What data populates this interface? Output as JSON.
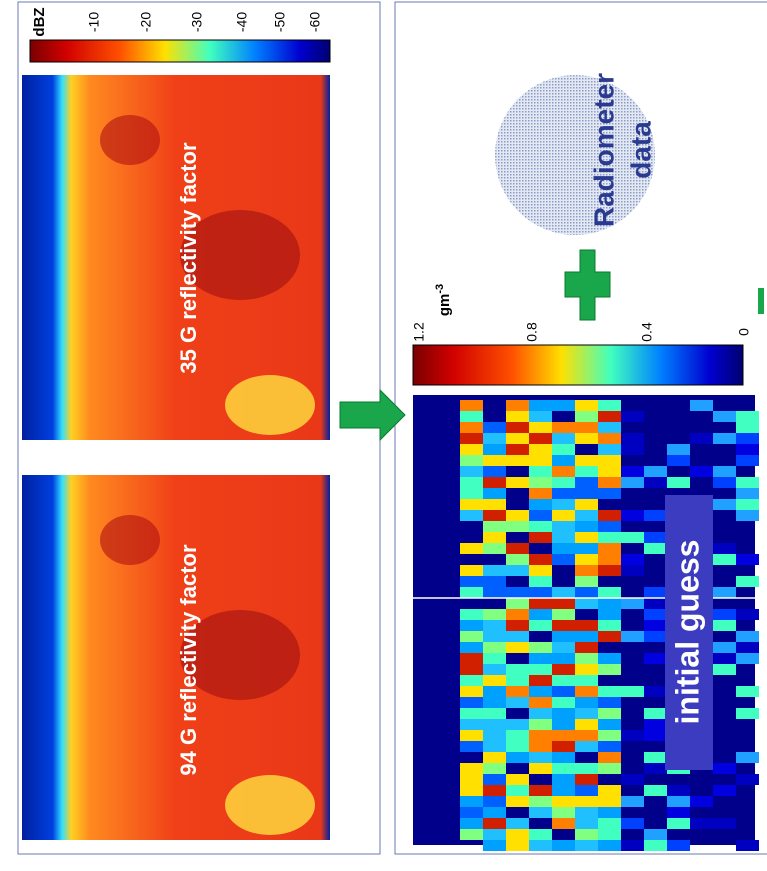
{
  "left_panel": {
    "colorbar_unit": "dBZ",
    "colorbar_ticks": [
      "-10",
      "-20",
      "-30",
      "-40",
      "-50",
      "-60"
    ],
    "maps": [
      "35 G reflectivity factor",
      "94 G reflectivity factor"
    ]
  },
  "right_panel": {
    "colorbar_ticks": [
      "1.2",
      "0.8",
      "0.4",
      "0"
    ],
    "colorbar_unit": "gm",
    "colorbar_unit_exp": "-3",
    "map_label": "initial guess",
    "radiometer": [
      "Radiometer",
      "data"
    ]
  }
}
